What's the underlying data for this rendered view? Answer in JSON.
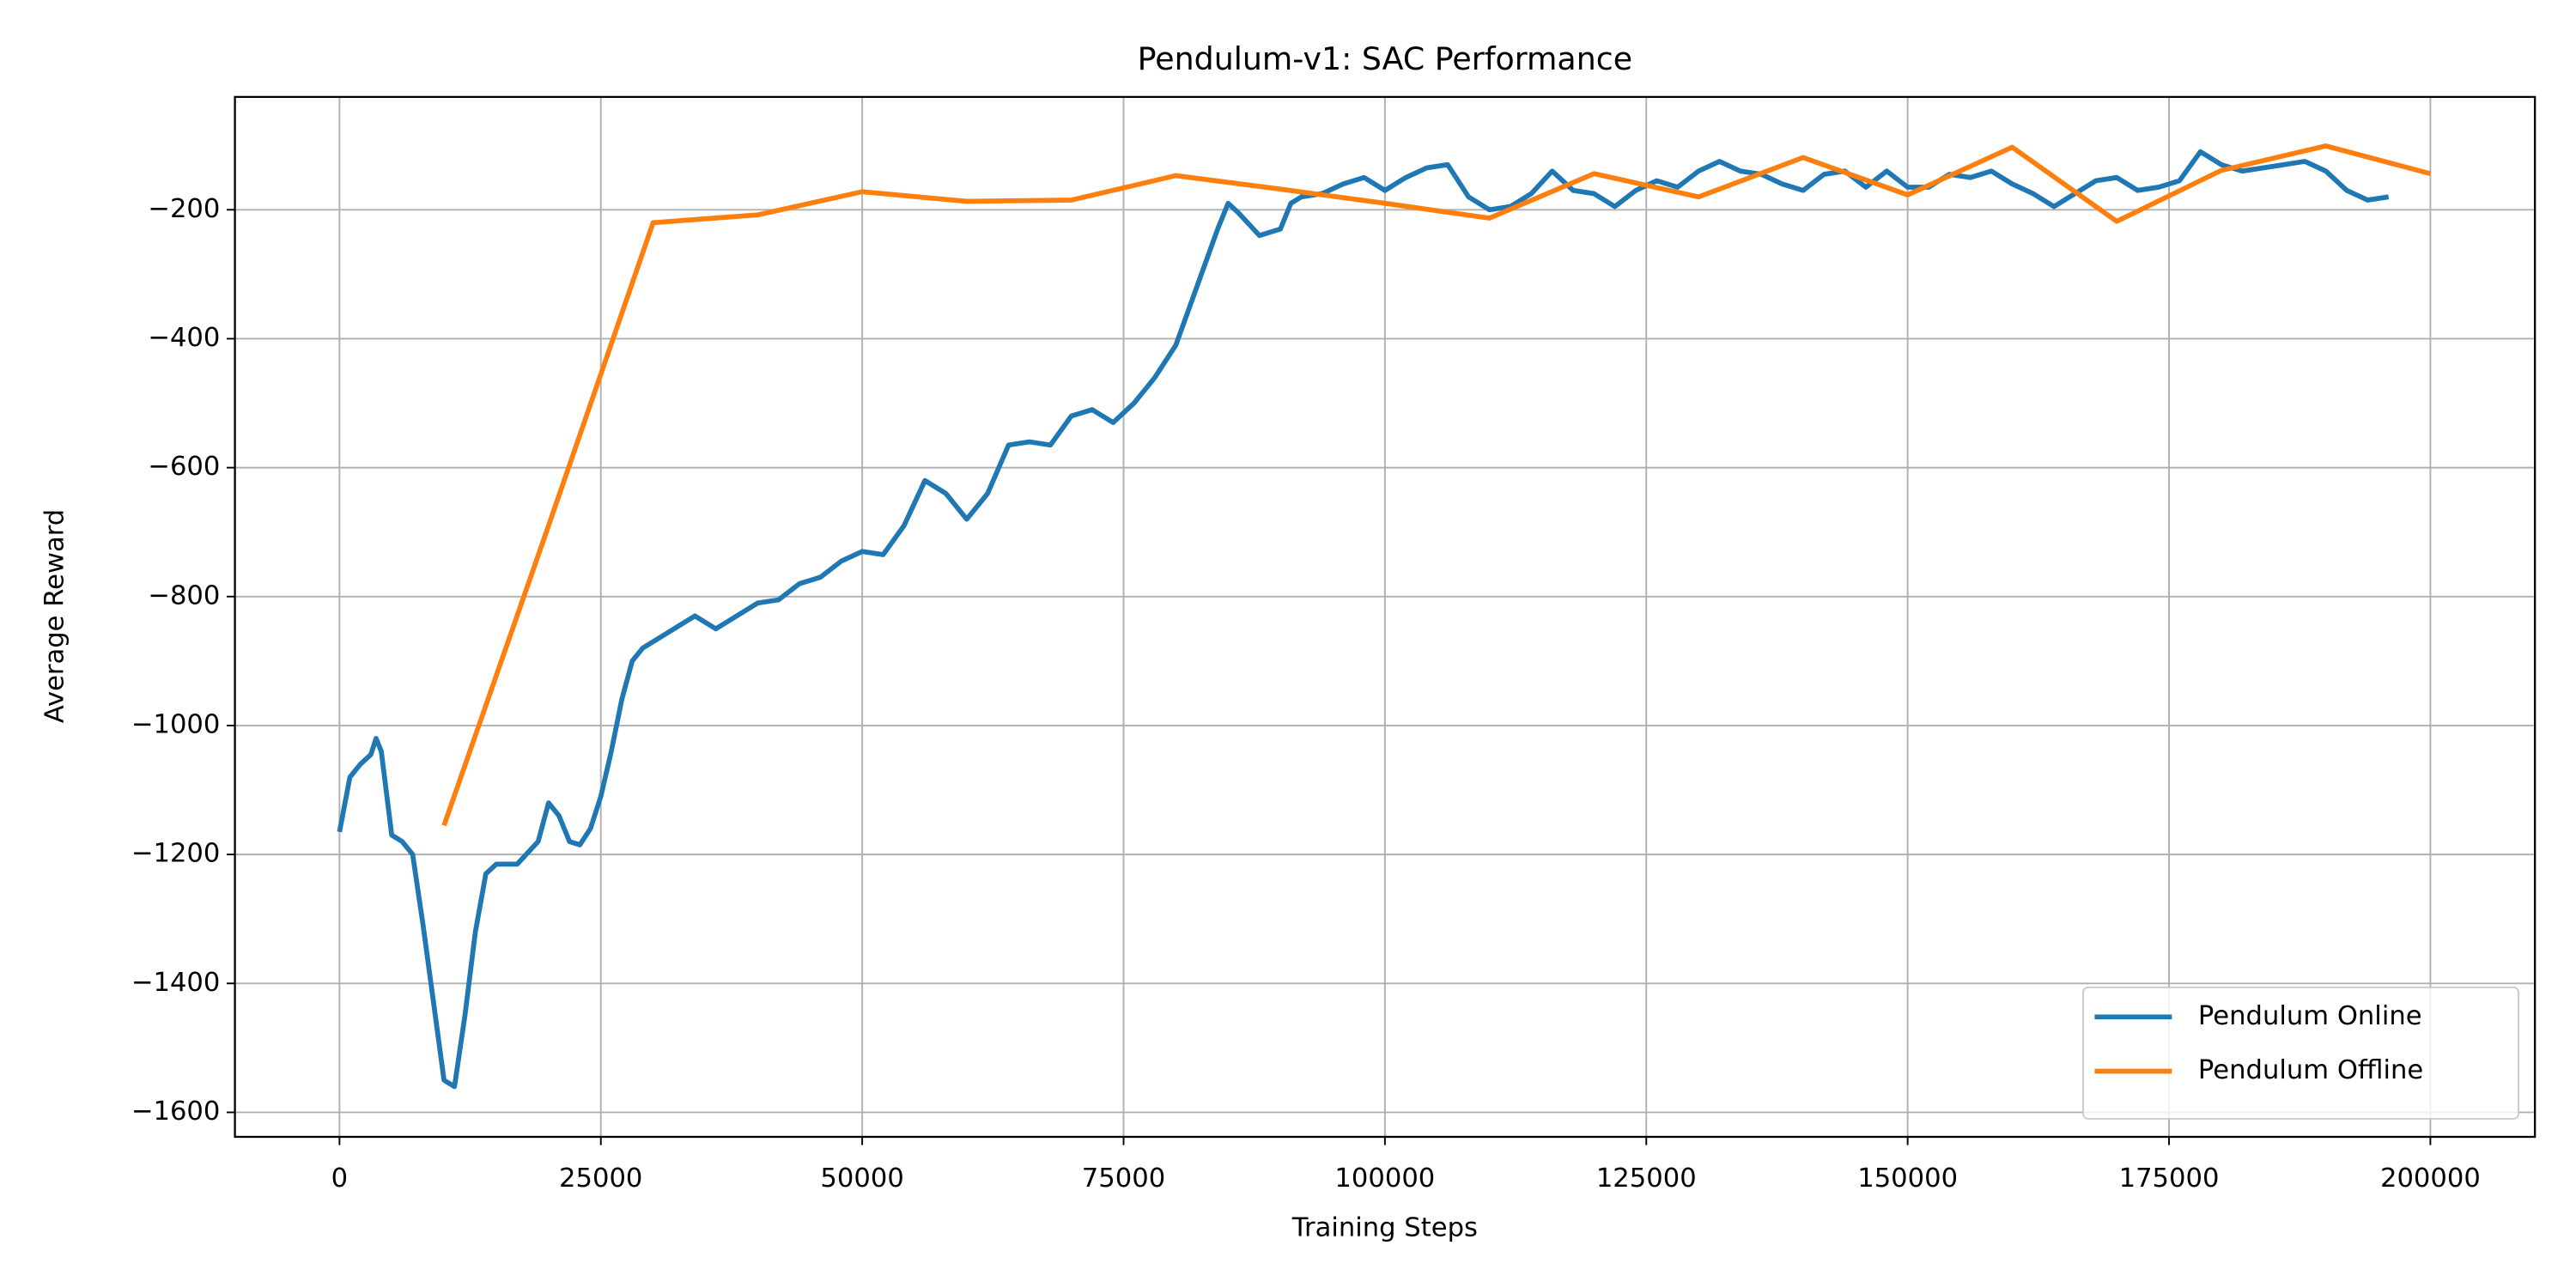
{
  "chart_data": {
    "type": "line",
    "title": "Pendulum-v1: SAC Performance",
    "x_label": "Training Steps",
    "y_label": "Average Reward",
    "xlim": [
      -10000,
      210000
    ],
    "ylim": [
      -1638,
      -25
    ],
    "xticks": [
      0,
      25000,
      50000,
      75000,
      100000,
      125000,
      150000,
      175000,
      200000
    ],
    "yticks": [
      {
        "value": -1600,
        "label": "−1600"
      },
      {
        "value": -1400,
        "label": "−1400"
      },
      {
        "value": -1200,
        "label": "−1200"
      },
      {
        "value": -1000,
        "label": "−1000"
      },
      {
        "value": -800,
        "label": "−800"
      },
      {
        "value": -600,
        "label": "−600"
      },
      {
        "value": -400,
        "label": "−400"
      },
      {
        "value": -200,
        "label": "−200"
      }
    ],
    "grid": true,
    "legend": "lower right",
    "series": [
      {
        "name": "Pendulum Online",
        "color": "#1f77b4",
        "x": [
          0,
          1000,
          2000,
          3000,
          3500,
          4000,
          5000,
          6000,
          7000,
          8000,
          9000,
          10000,
          11000,
          12000,
          13000,
          14000,
          15000,
          17000,
          19000,
          20000,
          21000,
          22000,
          23000,
          24000,
          25000,
          26000,
          27000,
          28000,
          29000,
          30000,
          32000,
          34000,
          36000,
          38000,
          40000,
          42000,
          44000,
          46000,
          48000,
          50000,
          52000,
          54000,
          56000,
          58000,
          60000,
          62000,
          64000,
          66000,
          68000,
          70000,
          72000,
          74000,
          76000,
          78000,
          80000,
          82000,
          84000,
          85000,
          86000,
          88000,
          90000,
          91000,
          92000,
          94000,
          96000,
          98000,
          100000,
          102000,
          104000,
          106000,
          108000,
          110000,
          112000,
          114000,
          116000,
          118000,
          120000,
          122000,
          124000,
          126000,
          128000,
          130000,
          132000,
          134000,
          136000,
          138000,
          140000,
          142000,
          144000,
          146000,
          148000,
          150000,
          152000,
          154000,
          156000,
          158000,
          160000,
          162000,
          164000,
          166000,
          168000,
          170000,
          172000,
          174000,
          176000,
          178000,
          180000,
          182000,
          184000,
          186000,
          188000,
          190000,
          192000,
          194000,
          196000
        ],
        "values": [
          -1165,
          -1080,
          -1060,
          -1045,
          -1020,
          -1040,
          -1170,
          -1180,
          -1200,
          -1310,
          -1430,
          -1550,
          -1560,
          -1450,
          -1320,
          -1230,
          -1215,
          -1215,
          -1180,
          -1120,
          -1140,
          -1180,
          -1185,
          -1160,
          -1110,
          -1040,
          -960,
          -900,
          -880,
          -870,
          -850,
          -830,
          -850,
          -830,
          -810,
          -805,
          -780,
          -770,
          -745,
          -730,
          -735,
          -690,
          -620,
          -640,
          -680,
          -640,
          -565,
          -560,
          -565,
          -520,
          -510,
          -530,
          -500,
          -460,
          -410,
          -320,
          -230,
          -190,
          -205,
          -240,
          -230,
          -190,
          -180,
          -175,
          -160,
          -150,
          -170,
          -150,
          -135,
          -130,
          -180,
          -200,
          -195,
          -175,
          -140,
          -170,
          -175,
          -195,
          -170,
          -155,
          -165,
          -140,
          -125,
          -140,
          -145,
          -160,
          -170,
          -145,
          -140,
          -165,
          -140,
          -165,
          -165,
          -145,
          -150,
          -140,
          -160,
          -175,
          -195,
          -175,
          -155,
          -150,
          -170,
          -165,
          -155,
          -110,
          -130,
          -140,
          -135,
          -130,
          -125,
          -140,
          -170,
          -185,
          -180
        ]
      },
      {
        "name": "Pendulum Offline",
        "color": "#ff7f0e",
        "x": [
          10000,
          20000,
          30000,
          40000,
          50000,
          60000,
          70000,
          80000,
          90000,
          100000,
          110000,
          120000,
          130000,
          140000,
          150000,
          160000,
          170000,
          180000,
          190000,
          200000
        ],
        "values": [
          -1155,
          -690,
          -220,
          -208,
          -172,
          -187,
          -185,
          -147,
          -168,
          -190,
          -213,
          -144,
          -180,
          -119,
          -177,
          -103,
          -218,
          -139,
          -101,
          -144
        ]
      }
    ]
  }
}
